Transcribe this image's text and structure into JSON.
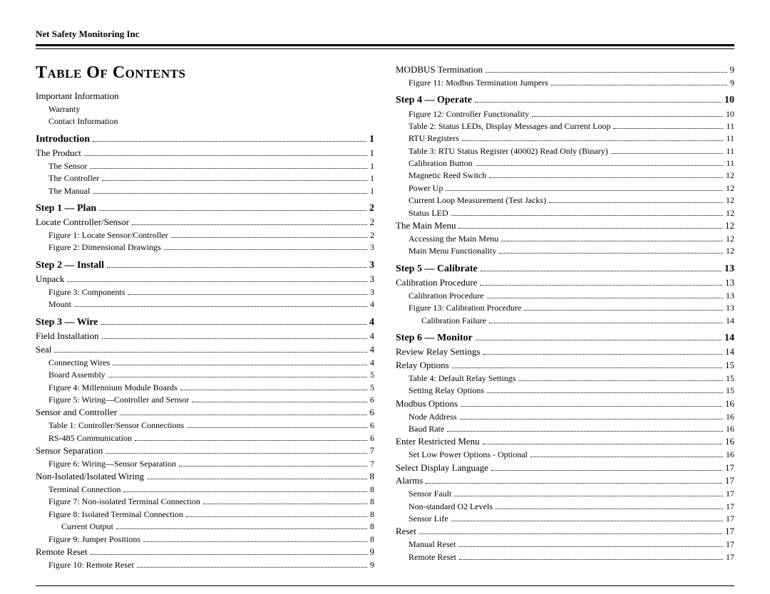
{
  "company": "Net Safety Monitoring Inc",
  "title": "Table Of Contents",
  "left": [
    {
      "label": "Important Information",
      "page": "",
      "indent": 0,
      "section": false,
      "nopage": true
    },
    {
      "label": "Warranty",
      "page": "",
      "indent": 1,
      "section": false,
      "nopage": true
    },
    {
      "label": "Contact Information",
      "page": "",
      "indent": 1,
      "section": false,
      "nopage": true
    },
    {
      "label": "Introduction",
      "page": "1",
      "indent": 0,
      "section": true
    },
    {
      "label": "The Product",
      "page": "1",
      "indent": 0
    },
    {
      "label": "The Sensor",
      "page": "1",
      "indent": 1
    },
    {
      "label": "The Controller",
      "page": "1",
      "indent": 1
    },
    {
      "label": "The Manual",
      "page": "1",
      "indent": 1
    },
    {
      "label": "Step 1 — Plan",
      "page": "2",
      "indent": 0,
      "section": true
    },
    {
      "label": "Locate Controller/Sensor",
      "page": "2",
      "indent": 0
    },
    {
      "label": "Figure 1: Locate Sensor/Controller",
      "page": "2",
      "indent": 1
    },
    {
      "label": "Figure 2: Dimensional Drawings",
      "page": "3",
      "indent": 1
    },
    {
      "label": "Step 2 — Install",
      "page": "3",
      "indent": 0,
      "section": true
    },
    {
      "label": "Unpack",
      "page": "3",
      "indent": 0
    },
    {
      "label": "Figure 3: Components",
      "page": "3",
      "indent": 1
    },
    {
      "label": "Mount",
      "page": "4",
      "indent": 1
    },
    {
      "label": "Step 3 — Wire",
      "page": "4",
      "indent": 0,
      "section": true
    },
    {
      "label": "Field Installation",
      "page": "4",
      "indent": 0
    },
    {
      "label": "Seal",
      "page": "4",
      "indent": 0
    },
    {
      "label": "Connecting Wires",
      "page": "4",
      "indent": 1
    },
    {
      "label": "Board Assembly",
      "page": "5",
      "indent": 1
    },
    {
      "label": "Figure 4: Millennium Module Boards",
      "page": "5",
      "indent": 1
    },
    {
      "label": "Figure 5: Wiring—Controller and Sensor",
      "page": "6",
      "indent": 1
    },
    {
      "label": "Sensor and Controller",
      "page": "6",
      "indent": 0
    },
    {
      "label": "Table 1: Controller/Sensor Connections",
      "page": "6",
      "indent": 1
    },
    {
      "label": "RS-485 Communication",
      "page": "6",
      "indent": 1
    },
    {
      "label": "Sensor Separation",
      "page": "7",
      "indent": 0
    },
    {
      "label": "Figure 6: Wiring—Sensor Separation",
      "page": "7",
      "indent": 1
    },
    {
      "label": "Non-Isolated/Isolated Wiring",
      "page": "8",
      "indent": 0
    },
    {
      "label": "Terminal Connection",
      "page": "8",
      "indent": 1
    },
    {
      "label": "Figure 7: Non-isolated Terminal Connection",
      "page": "8",
      "indent": 1
    },
    {
      "label": "Figure 8: Isolated Terminal Connection",
      "page": "8",
      "indent": 1
    },
    {
      "label": "Current Output",
      "page": "8",
      "indent": 2
    },
    {
      "label": "Figure 9: Jumper Positions",
      "page": "8",
      "indent": 1
    },
    {
      "label": "Remote Reset",
      "page": "9",
      "indent": 0
    },
    {
      "label": "Figure 10: Remote Reset",
      "page": "9",
      "indent": 1
    }
  ],
  "right": [
    {
      "label": "MODBUS Termination",
      "page": "9",
      "indent": 0
    },
    {
      "label": "Figure 11: Modbus Termination Jumpers",
      "page": "9",
      "indent": 1
    },
    {
      "label": "Step 4 — Operate",
      "page": "10",
      "indent": 0,
      "section": true
    },
    {
      "label": "Figure 12: Controller Functionality",
      "page": "10",
      "indent": 1
    },
    {
      "label": "Table 2: Status LEDs, Display Messages and Current Loop",
      "page": "11",
      "indent": 1
    },
    {
      "label": "RTU Registers",
      "page": "11",
      "indent": 1
    },
    {
      "label": "Table 3: RTU Status Register (40002) Read Only (Binary)",
      "page": "11",
      "indent": 1
    },
    {
      "label": "Calibration Button",
      "page": "11",
      "indent": 1
    },
    {
      "label": "Magnetic Reed Switch",
      "page": "12",
      "indent": 1
    },
    {
      "label": "Power Up",
      "page": "12",
      "indent": 1
    },
    {
      "label": "Current Loop Measurement (Test Jacks)",
      "page": "12",
      "indent": 1
    },
    {
      "label": "Status LED",
      "page": "12",
      "indent": 1
    },
    {
      "label": "The Main Menu",
      "page": "12",
      "indent": 0
    },
    {
      "label": "Accessing the Main Menu",
      "page": "12",
      "indent": 1
    },
    {
      "label": "Main Menu Functionality",
      "page": "12",
      "indent": 1
    },
    {
      "label": "Step 5 — Calibrate",
      "page": "13",
      "indent": 0,
      "section": true
    },
    {
      "label": "Calibration Procedure",
      "page": "13",
      "indent": 0
    },
    {
      "label": "Calibration Procedure",
      "page": "13",
      "indent": 1
    },
    {
      "label": "Figure 13: Calibration Procedure",
      "page": "13",
      "indent": 1
    },
    {
      "label": "Calibration Failure",
      "page": "14",
      "indent": 2
    },
    {
      "label": "Step 6 — Monitor",
      "page": "14",
      "indent": 0,
      "section": true
    },
    {
      "label": "Review Relay Settings",
      "page": "14",
      "indent": 0
    },
    {
      "label": "Relay Options",
      "page": "15",
      "indent": 0
    },
    {
      "label": "Table 4: Default Relay Settings",
      "page": "15",
      "indent": 1
    },
    {
      "label": "Setting Relay Options",
      "page": "15",
      "indent": 1
    },
    {
      "label": "Modbus Options",
      "page": "16",
      "indent": 0
    },
    {
      "label": "Node Address",
      "page": "16",
      "indent": 1
    },
    {
      "label": "Baud Rate",
      "page": "16",
      "indent": 1
    },
    {
      "label": "Enter Restricted Menu",
      "page": "16",
      "indent": 0
    },
    {
      "label": "Set Low Power Options - Optional",
      "page": "16",
      "indent": 1
    },
    {
      "label": "Select Display Language",
      "page": "17",
      "indent": 0
    },
    {
      "label": "Alarms",
      "page": "17",
      "indent": 0
    },
    {
      "label": "Sensor Fault",
      "page": "17",
      "indent": 1
    },
    {
      "label": "Non-standard O2 Levels",
      "page": "17",
      "indent": 1
    },
    {
      "label": "Sensor Life",
      "page": "17",
      "indent": 1
    },
    {
      "label": "Reset",
      "page": "17",
      "indent": 0
    },
    {
      "label": "Manual Reset",
      "page": "17",
      "indent": 1
    },
    {
      "label": "Remote Reset",
      "page": "17",
      "indent": 1
    }
  ]
}
